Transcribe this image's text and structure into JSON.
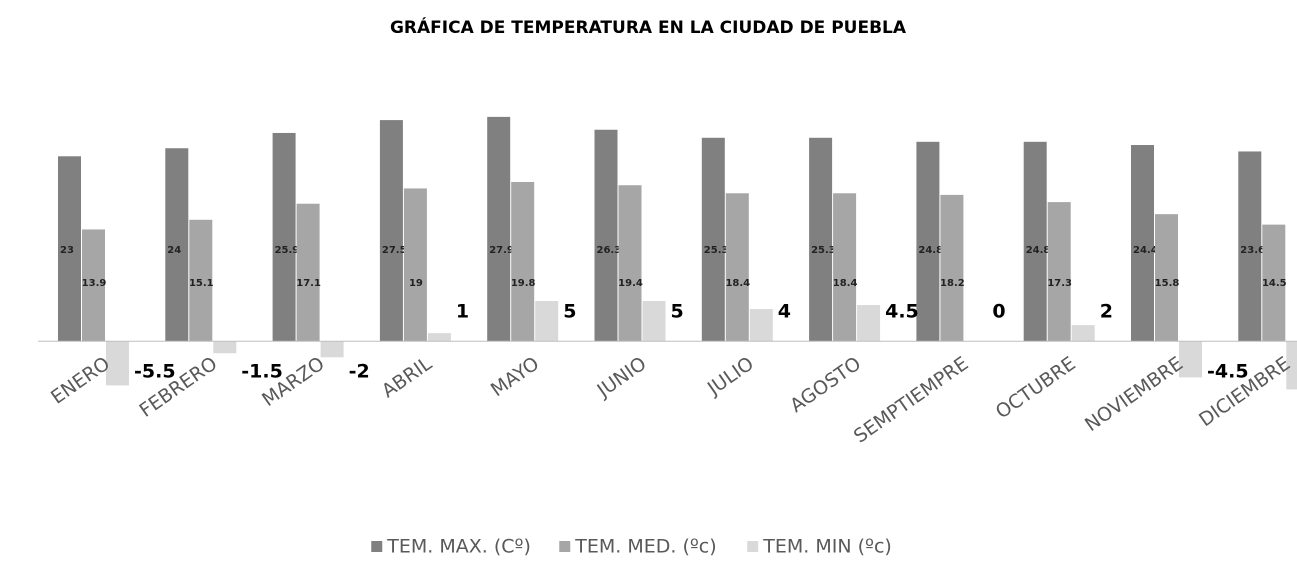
{
  "chart_data": {
    "type": "bar",
    "title": "GRÁFICA DE TEMPERATURA EN LA CIUDAD DE PUEBLA",
    "categories": [
      "ENERO",
      "FEBRERO",
      "MARZO",
      "ABRIL",
      "MAYO",
      "JUNIO",
      "JULIO",
      "AGOSTO",
      "SEMPTIEMPRE",
      "OCTUBRE",
      "NOVIEMBRE",
      "DICIEMBRE"
    ],
    "series": [
      {
        "name": "TEM. MAX. (Cº)",
        "color": "#808080",
        "values": [
          23,
          24,
          25.9,
          27.5,
          27.9,
          26.3,
          25.3,
          25.3,
          24.8,
          24.8,
          24.4,
          23.6
        ]
      },
      {
        "name": "TEM. MED. (ºc)",
        "color": "#a6a6a6",
        "values": [
          13.9,
          15.1,
          17.1,
          19,
          19.8,
          19.4,
          18.4,
          18.4,
          18.2,
          17.3,
          15.8,
          14.5
        ]
      },
      {
        "name": "TEM. MIN (ºc)",
        "color": "#d9d9d9",
        "values": [
          -5.5,
          -1.5,
          -2,
          1,
          5,
          5,
          4,
          4.5,
          0,
          2,
          -4.5,
          -6
        ]
      }
    ],
    "ylim": [
      -7.5,
      30
    ],
    "legend": "bottom"
  }
}
